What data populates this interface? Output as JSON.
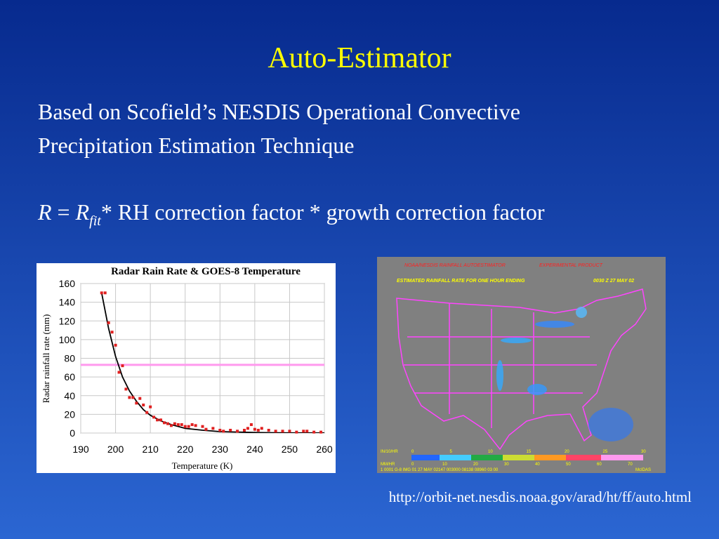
{
  "title": "Auto-Estimator",
  "body": {
    "lines": [
      "Based on Scofield’s NESDIS Operational Convective",
      "Precipitation Estimation Technique"
    ]
  },
  "formula": {
    "parts": [
      "R",
      "=",
      "R",
      "fit",
      "* RH correction factor * growth correction factor"
    ]
  },
  "chart_data": {
    "type": "scatter",
    "title": "Radar Rain Rate & GOES-8 Temperature",
    "xlabel": "Temperature (K)",
    "ylabel": "Radar rainfall rate (mm)",
    "xlim": [
      190,
      260
    ],
    "ylim": [
      0,
      160
    ],
    "xticks": [
      190,
      200,
      210,
      220,
      230,
      240,
      250,
      260
    ],
    "yticks": [
      0,
      20,
      40,
      60,
      80,
      100,
      120,
      140,
      160
    ],
    "grid": true,
    "series": [
      {
        "mode": "markers",
        "color": "#e02020",
        "x": [
          196,
          197,
          198,
          199,
          200,
          201,
          202,
          203,
          204,
          205,
          206,
          207,
          208,
          209,
          210,
          211,
          212,
          213,
          214,
          215,
          216,
          217,
          218,
          219,
          220,
          221,
          222,
          223,
          225,
          226,
          228,
          230,
          231,
          233,
          235,
          237,
          238,
          239,
          240,
          241,
          242,
          244,
          246,
          248,
          250,
          252,
          254,
          255,
          257,
          259
        ],
        "values": [
          150,
          150,
          118,
          108,
          94,
          65,
          72,
          47,
          38,
          38,
          32,
          37,
          30,
          22,
          28,
          17,
          14,
          14,
          11,
          10,
          8,
          10,
          9,
          9,
          7,
          7,
          9,
          8,
          7,
          4,
          5,
          3,
          2,
          3,
          2,
          3,
          5,
          9,
          4,
          3,
          5,
          3,
          2,
          2,
          2,
          1,
          2,
          2,
          1,
          1
        ]
      },
      {
        "mode": "line",
        "color": "#000000",
        "x": [
          196,
          198,
          200,
          202,
          204,
          206,
          208,
          210,
          213,
          216,
          220,
          225,
          230,
          240,
          250,
          260
        ],
        "values": [
          150,
          112,
          82,
          60,
          45,
          34,
          25,
          19,
          13,
          9,
          5,
          3,
          1.5,
          0.5,
          0.2,
          0.1
        ]
      },
      {
        "mode": "line",
        "color": "#ff99ee",
        "x": [
          190,
          260
        ],
        "values": [
          73,
          73
        ]
      }
    ]
  },
  "map": {
    "header": "NOAA/NESDIS RAINFALL AUTOESTIMATOR",
    "product": "EXPERIMENTAL PRODUCT",
    "subtitle": "ESTIMATED RAINFALL RATE FOR ONE HOUR ENDING",
    "time": "0030 Z  27 MAY 02",
    "in_unit": "IN/10/HR",
    "in_labels": [
      0,
      5,
      10,
      15,
      20,
      25,
      30
    ],
    "mm_unit": "MM/HR",
    "mm_labels": [
      0,
      10,
      20,
      30,
      40,
      50,
      60,
      70
    ],
    "footer": "1 0001  G-8 IMG   01 27 MAY 02147 003000 08138 08960 03 00",
    "credit": "McIDAS"
  },
  "url": "http://orbit-net.nesdis.noaa.gov/arad/ht/ff/auto.html"
}
